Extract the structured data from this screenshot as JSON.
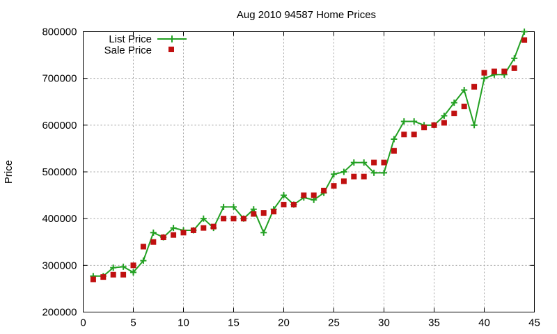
{
  "chart_data": {
    "type": "line",
    "title": "Aug 2010 94587 Home Prices",
    "xlabel": "",
    "ylabel": "Price",
    "xlim": [
      0,
      45
    ],
    "ylim": [
      200000,
      800000
    ],
    "x_ticks": [
      0,
      5,
      10,
      15,
      20,
      25,
      30,
      35,
      40,
      45
    ],
    "y_ticks": [
      200000,
      300000,
      400000,
      500000,
      600000,
      700000,
      800000
    ],
    "grid": true,
    "legend_position": "top-left",
    "series": [
      {
        "name": "List Price",
        "style": "line-plus",
        "color": "#22a022",
        "x": [
          1,
          2,
          3,
          4,
          5,
          6,
          7,
          8,
          9,
          10,
          11,
          12,
          13,
          14,
          15,
          16,
          17,
          18,
          19,
          20,
          21,
          22,
          23,
          24,
          25,
          26,
          27,
          28,
          29,
          30,
          31,
          32,
          33,
          34,
          35,
          36,
          37,
          38,
          39,
          40,
          41,
          42,
          43,
          44
        ],
        "values": [
          277000,
          277000,
          295000,
          297000,
          285000,
          310000,
          370000,
          360000,
          380000,
          375000,
          375000,
          400000,
          380000,
          425000,
          425000,
          400000,
          420000,
          370000,
          420000,
          450000,
          430000,
          445000,
          440000,
          455000,
          495000,
          500000,
          520000,
          520000,
          498000,
          498000,
          570000,
          608000,
          608000,
          600000,
          600000,
          620000,
          648000,
          675000,
          600000,
          700000,
          708000,
          708000,
          743000,
          800000
        ]
      },
      {
        "name": "Sale Price",
        "style": "square",
        "color": "#c01010",
        "x": [
          1,
          2,
          3,
          4,
          5,
          6,
          7,
          8,
          9,
          10,
          11,
          12,
          13,
          14,
          15,
          16,
          17,
          18,
          19,
          20,
          21,
          22,
          23,
          24,
          25,
          26,
          27,
          28,
          29,
          30,
          31,
          32,
          33,
          34,
          35,
          36,
          37,
          38,
          39,
          40,
          41,
          42,
          43,
          44
        ],
        "values": [
          270000,
          275000,
          280000,
          280000,
          300000,
          340000,
          350000,
          360000,
          365000,
          370000,
          375000,
          380000,
          383000,
          400000,
          400000,
          400000,
          410000,
          412000,
          415000,
          430000,
          430000,
          450000,
          450000,
          460000,
          470000,
          480000,
          490000,
          490000,
          520000,
          520000,
          545000,
          580000,
          580000,
          595000,
          600000,
          605000,
          625000,
          640000,
          682000,
          712000,
          715000,
          715000,
          722000,
          782000
        ]
      }
    ]
  }
}
